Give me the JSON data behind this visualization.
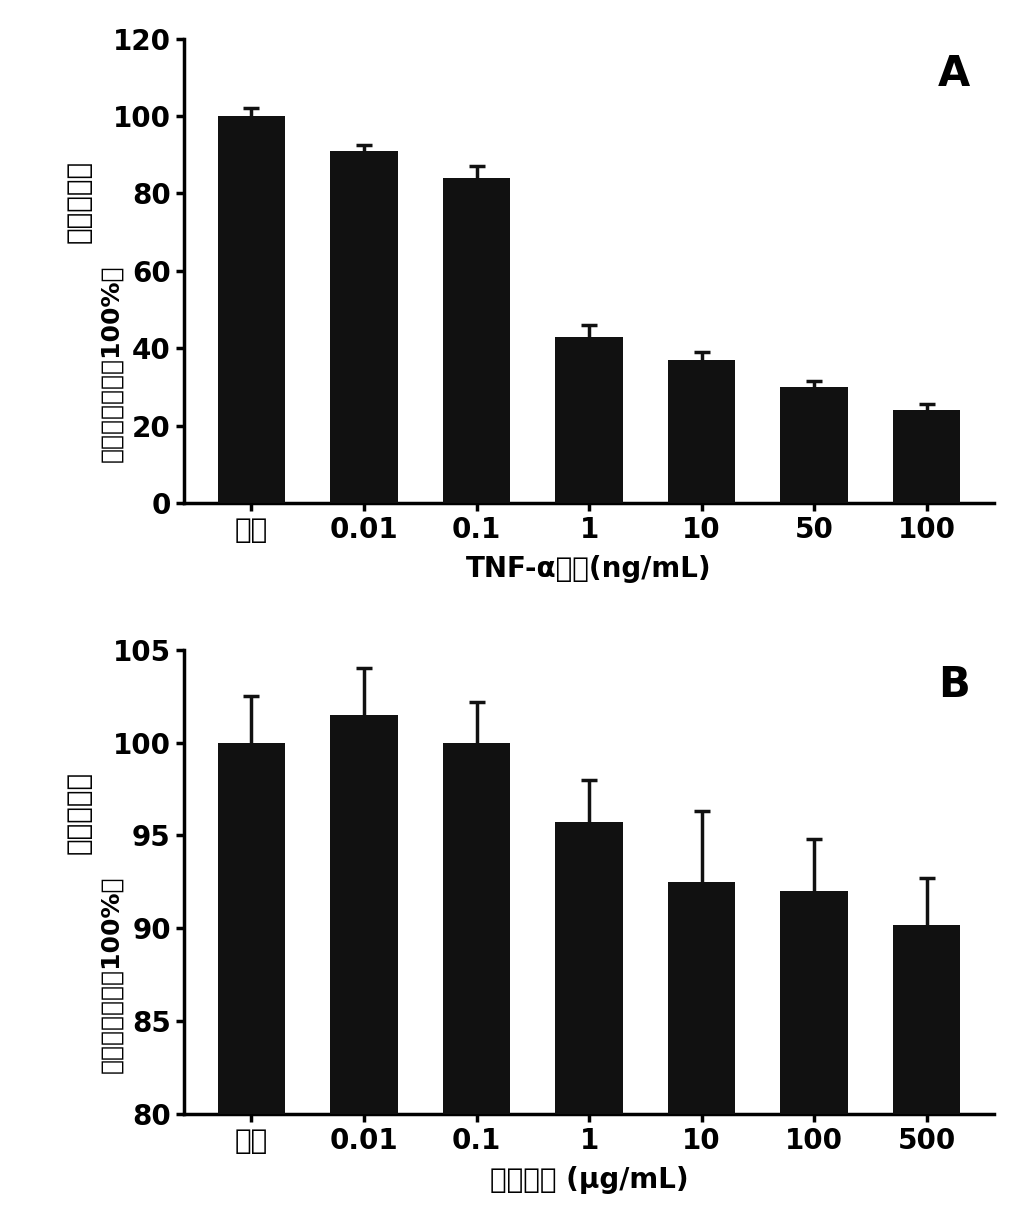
{
  "panel_A": {
    "categories": [
      "对照",
      "0.01",
      "0.1",
      "1",
      "10",
      "50",
      "100"
    ],
    "values": [
      100,
      91,
      84,
      43,
      37,
      30,
      24
    ],
    "errors": [
      2,
      1.5,
      3,
      3,
      2,
      1.5,
      1.5
    ],
    "ylabel_line1": "细胞存活率",
    "ylabel_line2": "（以正常细胞为100%）",
    "xlabel": "TNF-α浓度(ng/mL)",
    "ylim": [
      0,
      120
    ],
    "yticks": [
      0,
      20,
      40,
      60,
      80,
      100,
      120
    ],
    "label": "A",
    "bar_color": "#111111",
    "ecolor": "#111111"
  },
  "panel_B": {
    "categories": [
      "对照",
      "0.01",
      "0.1",
      "1",
      "10",
      "100",
      "500"
    ],
    "values": [
      100,
      101.5,
      100,
      95.7,
      92.5,
      92,
      90.2
    ],
    "errors": [
      2.5,
      2.5,
      2.2,
      2.3,
      3.8,
      2.8,
      2.5
    ],
    "ylabel_line1": "细胞存活率",
    "ylabel_line2": "（以正常细胞为100%）",
    "xlabel": "多肽浓度 (μg/mL)",
    "ylim": [
      80,
      105
    ],
    "yticks": [
      80,
      85,
      90,
      95,
      100,
      105
    ],
    "label": "B",
    "bar_color": "#111111",
    "ecolor": "#111111"
  },
  "figure_bg": "#ffffff",
  "bar_width": 0.6
}
